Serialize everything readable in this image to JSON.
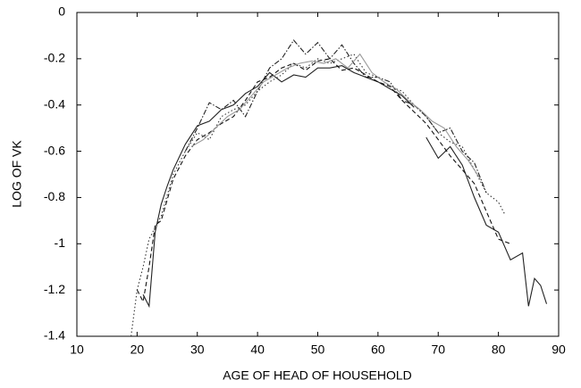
{
  "chart_data": {
    "type": "line",
    "x_label": "AGE OF HEAD OF HOUSEHOLD",
    "y_label": "LOG OF VK",
    "xlim": [
      10,
      90
    ],
    "xticks": [
      10,
      20,
      30,
      40,
      50,
      60,
      70,
      80,
      90
    ],
    "ylim": [
      -1.4,
      0
    ],
    "yticks": [
      0,
      -0.2,
      -0.4,
      -0.6,
      -0.8,
      -1,
      -1.2,
      -1.4
    ],
    "series": [
      {
        "color": "#222222",
        "line_style": "solid",
        "x": [
          21,
          22,
          23,
          24,
          25,
          26,
          28,
          30,
          32,
          34,
          36,
          38,
          40,
          42,
          44,
          46,
          48,
          50,
          52,
          54,
          56,
          58,
          60,
          62,
          64,
          66,
          67,
          68,
          70,
          72,
          74,
          76,
          78,
          80,
          82,
          84,
          85,
          86,
          87,
          88
        ],
        "values": [
          -1.22,
          -1.27,
          -0.95,
          -0.83,
          -0.75,
          -0.68,
          -0.57,
          -0.49,
          -0.47,
          -0.42,
          -0.4,
          -0.35,
          -0.32,
          -0.26,
          -0.3,
          -0.27,
          -0.28,
          -0.24,
          -0.24,
          -0.23,
          -0.26,
          -0.28,
          -0.3,
          -0.33,
          -0.36,
          -0.41,
          null,
          -0.54,
          -0.63,
          -0.58,
          -0.66,
          -0.8,
          -0.92,
          -0.95,
          -1.07,
          -1.04,
          -1.27,
          -1.15,
          -1.18,
          -1.26
        ]
      },
      {
        "color": "#111111",
        "line_style": "dashed",
        "x": [
          20,
          21,
          22,
          23,
          24,
          26,
          28,
          30,
          32,
          34,
          36,
          38,
          40,
          42,
          44,
          46,
          48,
          50,
          52,
          54,
          56,
          58,
          60,
          62,
          64,
          66,
          68,
          70,
          72,
          74,
          76,
          78,
          80,
          82
        ],
        "values": [
          -1.2,
          -1.25,
          -1.1,
          -0.92,
          -0.9,
          -0.72,
          -0.62,
          -0.55,
          -0.52,
          -0.48,
          -0.45,
          -0.38,
          -0.3,
          -0.28,
          -0.24,
          -0.22,
          -0.25,
          -0.21,
          -0.2,
          -0.25,
          -0.24,
          -0.27,
          -0.3,
          -0.32,
          -0.38,
          -0.43,
          -0.48,
          -0.55,
          -0.62,
          -0.68,
          -0.74,
          -0.86,
          -0.98,
          -1.0
        ]
      },
      {
        "color": "#333333",
        "line_style": "dotted",
        "x": [
          19,
          20,
          21,
          22,
          24,
          26,
          28,
          30,
          32,
          34,
          36,
          38,
          40,
          42,
          44,
          46,
          48,
          50,
          52,
          54,
          56,
          58,
          60,
          62,
          64,
          66,
          68,
          70,
          72,
          74,
          76,
          78,
          80,
          81
        ],
        "values": [
          -1.4,
          -1.2,
          -1.1,
          -0.98,
          -0.88,
          -0.7,
          -0.6,
          -0.52,
          -0.55,
          -0.45,
          -0.42,
          -0.4,
          -0.34,
          -0.3,
          -0.27,
          -0.22,
          -0.24,
          -0.2,
          -0.22,
          -0.2,
          -0.18,
          -0.26,
          -0.28,
          -0.32,
          -0.34,
          -0.4,
          -0.45,
          -0.52,
          -0.56,
          -0.58,
          -0.68,
          -0.78,
          -0.82,
          -0.87
        ]
      },
      {
        "color": "#222222",
        "line_style": "dashdot",
        "x": [
          28,
          30,
          32,
          34,
          36,
          38,
          40,
          42,
          44,
          46,
          48,
          50,
          52,
          54,
          56,
          58,
          60,
          62,
          64,
          66,
          68,
          70,
          72,
          74,
          76,
          78
        ],
        "values": [
          -0.6,
          -0.5,
          -0.39,
          -0.42,
          -0.38,
          -0.45,
          -0.34,
          -0.24,
          -0.2,
          -0.12,
          -0.18,
          -0.13,
          -0.2,
          -0.14,
          -0.22,
          -0.28,
          -0.28,
          -0.3,
          -0.38,
          -0.4,
          -0.45,
          -0.52,
          -0.5,
          -0.6,
          -0.65,
          -0.78
        ]
      },
      {
        "color": "#999999",
        "line_style": "solid",
        "x": [
          29,
          31,
          33,
          35,
          37,
          39,
          41,
          43,
          45,
          47,
          49,
          51,
          53,
          55,
          57,
          59,
          61,
          63,
          65,
          67,
          69,
          71,
          73,
          75,
          77
        ],
        "values": [
          -0.58,
          -0.55,
          -0.5,
          -0.45,
          -0.42,
          -0.36,
          -0.3,
          -0.27,
          -0.24,
          -0.22,
          -0.21,
          -0.22,
          -0.2,
          -0.24,
          -0.18,
          -0.26,
          -0.3,
          -0.33,
          -0.38,
          -0.42,
          -0.47,
          -0.5,
          -0.58,
          -0.64,
          -0.72
        ]
      }
    ]
  }
}
